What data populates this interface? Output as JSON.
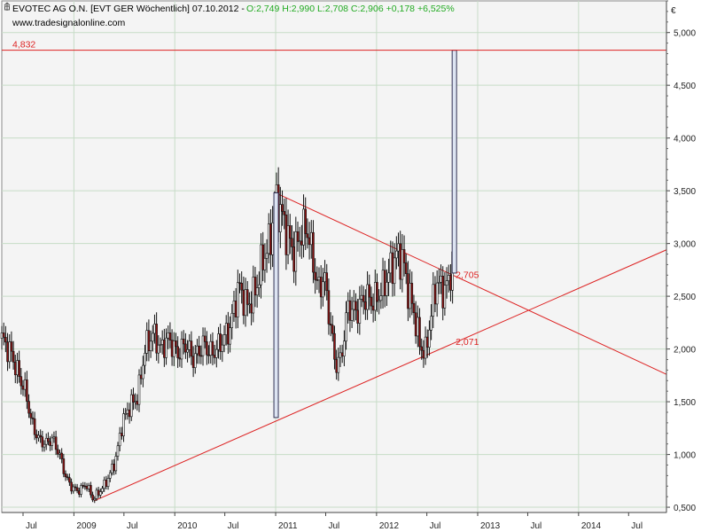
{
  "header": {
    "main": "EVOTEC AG O.N. [EVT GER  Wöchentlich] 07.10.2012 -",
    "ohlc": "O:2,749 H:2,990 L:2,708 C:2,906 +0,178 +6,525%",
    "website": "www.tradesignalonline.com"
  },
  "currency_symbol": "€",
  "colors": {
    "background": "#ffffff",
    "plot_area": "#f4f4f4",
    "grid": "#c7dcc7",
    "ohlc_text": "#22aa22",
    "up_candle": "#ffffff",
    "down_candle": "#8b1212",
    "line_red": "#dd2222",
    "box_fill": "#dde4f2",
    "box_stroke": "#333355"
  },
  "chart_data": {
    "type": "candlestick",
    "ylim": [
      0.45,
      5.3
    ],
    "y_ticks": [
      {
        "value": 0.5,
        "label": "0,500"
      },
      {
        "value": 1.0,
        "label": "1,000"
      },
      {
        "value": 1.5,
        "label": "1,500"
      },
      {
        "value": 2.0,
        "label": "2,000"
      },
      {
        "value": 2.5,
        "label": "2,500"
      },
      {
        "value": 3.0,
        "label": "3,000"
      },
      {
        "value": 3.5,
        "label": "3,500"
      },
      {
        "value": 4.0,
        "label": "4,000"
      },
      {
        "value": 4.5,
        "label": "4,500"
      },
      {
        "value": 5.0,
        "label": "5,000"
      }
    ],
    "x_range": [
      "2008-04-15",
      "2014-11-15"
    ],
    "x_ticks": [
      {
        "date": "2008-07-01",
        "label": "Jul",
        "year": false
      },
      {
        "date": "2009-01-01",
        "label": "2009",
        "year": true
      },
      {
        "date": "2009-07-01",
        "label": "Jul",
        "year": false
      },
      {
        "date": "2010-01-01",
        "label": "2010",
        "year": true
      },
      {
        "date": "2010-07-01",
        "label": "Jul",
        "year": false
      },
      {
        "date": "2011-01-01",
        "label": "2011",
        "year": true
      },
      {
        "date": "2011-07-01",
        "label": "Jul",
        "year": false
      },
      {
        "date": "2012-01-01",
        "label": "2012",
        "year": true
      },
      {
        "date": "2012-07-01",
        "label": "Jul",
        "year": false
      },
      {
        "date": "2013-01-01",
        "label": "2013",
        "year": true
      },
      {
        "date": "2013-07-01",
        "label": "Jul",
        "year": false
      },
      {
        "date": "2014-01-01",
        "label": "2014",
        "year": true
      },
      {
        "date": "2014-07-01",
        "label": "Jul",
        "year": false
      }
    ],
    "price_path": [
      [
        "2008-04-15",
        2.1
      ],
      [
        "2008-05-20",
        1.95
      ],
      [
        "2008-06-15",
        1.75
      ],
      [
        "2008-07-10",
        1.6
      ],
      [
        "2008-08-01",
        1.3
      ],
      [
        "2008-08-25",
        1.15
      ],
      [
        "2008-09-20",
        1.1
      ],
      [
        "2008-10-15",
        1.15
      ],
      [
        "2008-11-10",
        1.0
      ],
      [
        "2008-12-01",
        0.8
      ],
      [
        "2008-12-20",
        0.7
      ],
      [
        "2009-01-15",
        0.65
      ],
      [
        "2009-02-15",
        0.72
      ],
      [
        "2009-03-10",
        0.58
      ],
      [
        "2009-04-05",
        0.65
      ],
      [
        "2009-05-01",
        0.75
      ],
      [
        "2009-06-01",
        0.95
      ],
      [
        "2009-06-25",
        1.3
      ],
      [
        "2009-07-20",
        1.45
      ],
      [
        "2009-08-20",
        1.55
      ],
      [
        "2009-09-15",
        2.0
      ],
      [
        "2009-10-15",
        2.15
      ],
      [
        "2009-11-10",
        2.0
      ],
      [
        "2009-12-10",
        2.1
      ],
      [
        "2010-01-10",
        1.95
      ],
      [
        "2010-02-10",
        2.05
      ],
      [
        "2010-03-10",
        1.9
      ],
      [
        "2010-04-15",
        2.05
      ],
      [
        "2010-05-15",
        1.95
      ],
      [
        "2010-06-15",
        2.05
      ],
      [
        "2010-07-20",
        2.2
      ],
      [
        "2010-08-20",
        2.6
      ],
      [
        "2010-09-20",
        2.4
      ],
      [
        "2010-10-20",
        2.55
      ],
      [
        "2010-11-15",
        2.85
      ],
      [
        "2010-12-10",
        3.0
      ],
      [
        "2011-01-01",
        3.4
      ],
      [
        "2011-01-20",
        3.3
      ],
      [
        "2011-02-15",
        3.05
      ],
      [
        "2011-03-10",
        2.9
      ],
      [
        "2011-04-01",
        3.1
      ],
      [
        "2011-04-25",
        3.15
      ],
      [
        "2011-05-15",
        2.85
      ],
      [
        "2011-06-05",
        2.55
      ],
      [
        "2011-06-25",
        2.7
      ],
      [
        "2011-07-15",
        2.3
      ],
      [
        "2011-08-05",
        1.85
      ],
      [
        "2011-08-25",
        1.9
      ],
      [
        "2011-09-20",
        2.4
      ],
      [
        "2011-10-20",
        2.35
      ],
      [
        "2011-11-20",
        2.5
      ],
      [
        "2011-12-20",
        2.45
      ],
      [
        "2012-01-20",
        2.55
      ],
      [
        "2012-02-20",
        2.75
      ],
      [
        "2012-03-15",
        2.9
      ],
      [
        "2012-04-05",
        2.85
      ],
      [
        "2012-04-25",
        2.55
      ],
      [
        "2012-05-15",
        2.35
      ],
      [
        "2012-06-05",
        2.05
      ],
      [
        "2012-06-25",
        1.95
      ],
      [
        "2012-07-15",
        2.3
      ],
      [
        "2012-08-05",
        2.65
      ],
      [
        "2012-08-25",
        2.55
      ],
      [
        "2012-09-15",
        2.6
      ],
      [
        "2012-10-07",
        2.9
      ]
    ],
    "spikes": [
      {
        "date": "2011-01-01",
        "low": 1.35,
        "high": 3.48
      },
      {
        "date": "2012-10-07",
        "low": 2.72,
        "high": 4.832
      }
    ],
    "horizontal_lines": [
      {
        "value": 4.832,
        "label": "4,832"
      }
    ],
    "trendlines": [
      {
        "name": "support",
        "from": [
          "2009-03-15",
          0.56
        ],
        "to": [
          "2014-11-15",
          2.94
        ]
      },
      {
        "name": "resistance",
        "from": [
          "2011-01-01",
          3.48
        ],
        "to": [
          "2014-11-15",
          1.76
        ]
      }
    ],
    "annotations": [
      {
        "date": "2012-10-07",
        "value": 2.705,
        "label": "2,705"
      },
      {
        "date": "2012-10-07",
        "value": 2.071,
        "label": "2,071"
      }
    ]
  }
}
